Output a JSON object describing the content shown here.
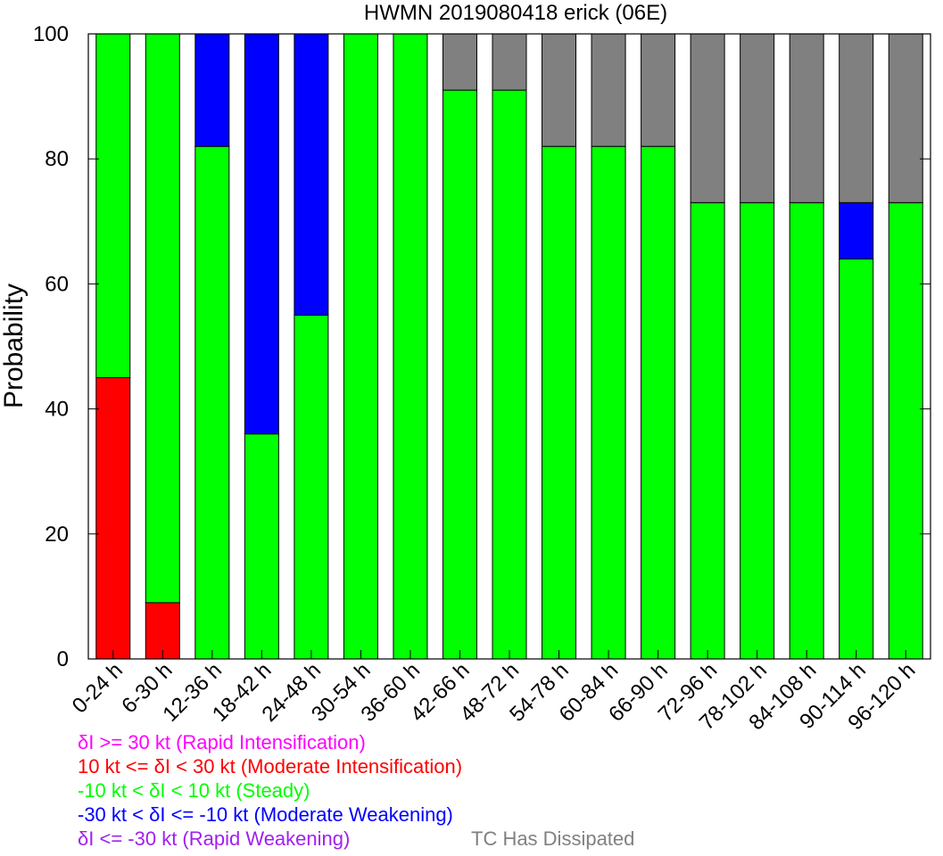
{
  "chart_data": {
    "type": "bar",
    "stacked": true,
    "title": "HWMN 2019080418 erick (06E)",
    "ylabel": "Probability",
    "ylim": [
      0,
      100
    ],
    "yticks": [
      0,
      20,
      40,
      60,
      80,
      100
    ],
    "categories": [
      "0-24 h",
      "6-30 h",
      "12-36 h",
      "18-42 h",
      "24-48 h",
      "30-54 h",
      "36-60 h",
      "42-66 h",
      "48-72 h",
      "54-78 h",
      "60-84 h",
      "66-90 h",
      "72-96 h",
      "78-102 h",
      "84-108 h",
      "90-114 h",
      "96-120 h"
    ],
    "series": [
      {
        "name": "δI >= 30 kt (Rapid Intensification)",
        "color": "#ff00ff",
        "values": [
          0,
          0,
          0,
          0,
          0,
          0,
          0,
          0,
          0,
          0,
          0,
          0,
          0,
          0,
          0,
          0,
          0
        ]
      },
      {
        "name": "10 kt <= δI < 30 kt (Moderate Intensification)",
        "color": "#ff0000",
        "values": [
          45,
          9,
          0,
          0,
          0,
          0,
          0,
          0,
          0,
          0,
          0,
          0,
          0,
          0,
          0,
          0,
          0
        ]
      },
      {
        "name": "-10 kt < δI < 10 kt (Steady)",
        "color": "#00ff00",
        "values": [
          55,
          91,
          82,
          36,
          55,
          100,
          100,
          91,
          91,
          82,
          82,
          82,
          73,
          73,
          73,
          64,
          73
        ]
      },
      {
        "name": "-30 kt < δI <= -10 kt (Moderate Weakening)",
        "color": "#0000ff",
        "values": [
          0,
          0,
          18,
          64,
          45,
          0,
          0,
          0,
          0,
          0,
          0,
          0,
          0,
          0,
          0,
          9,
          0
        ]
      },
      {
        "name": "δI <= -30 kt (Rapid Weakening)",
        "color": "#a020f0",
        "values": [
          0,
          0,
          0,
          0,
          0,
          0,
          0,
          0,
          0,
          0,
          0,
          0,
          0,
          0,
          0,
          0,
          0
        ]
      },
      {
        "name": "TC Has Dissipated",
        "color": "#808080",
        "values": [
          0,
          0,
          0,
          0,
          0,
          0,
          0,
          9,
          9,
          18,
          18,
          18,
          27,
          27,
          27,
          27,
          27
        ]
      }
    ],
    "grid": false,
    "legend_position": "bottom-left"
  },
  "legend": [
    {
      "text": "δI >= 30 kt (Rapid Intensification)",
      "color": "#ff00ff"
    },
    {
      "text": "10 kt <= δI < 30 kt (Moderate Intensification)",
      "color": "#ff0000"
    },
    {
      "text": "-10 kt < δI < 10 kt (Steady)",
      "color": "#00ff00"
    },
    {
      "text": "-30 kt < δI <= -10 kt (Moderate Weakening)",
      "color": "#0000ff"
    },
    {
      "text": "δI <= -30 kt (Rapid Weakening)",
      "color": "#a020f0"
    },
    {
      "text": "TC Has Dissipated",
      "color": "#808080"
    }
  ]
}
